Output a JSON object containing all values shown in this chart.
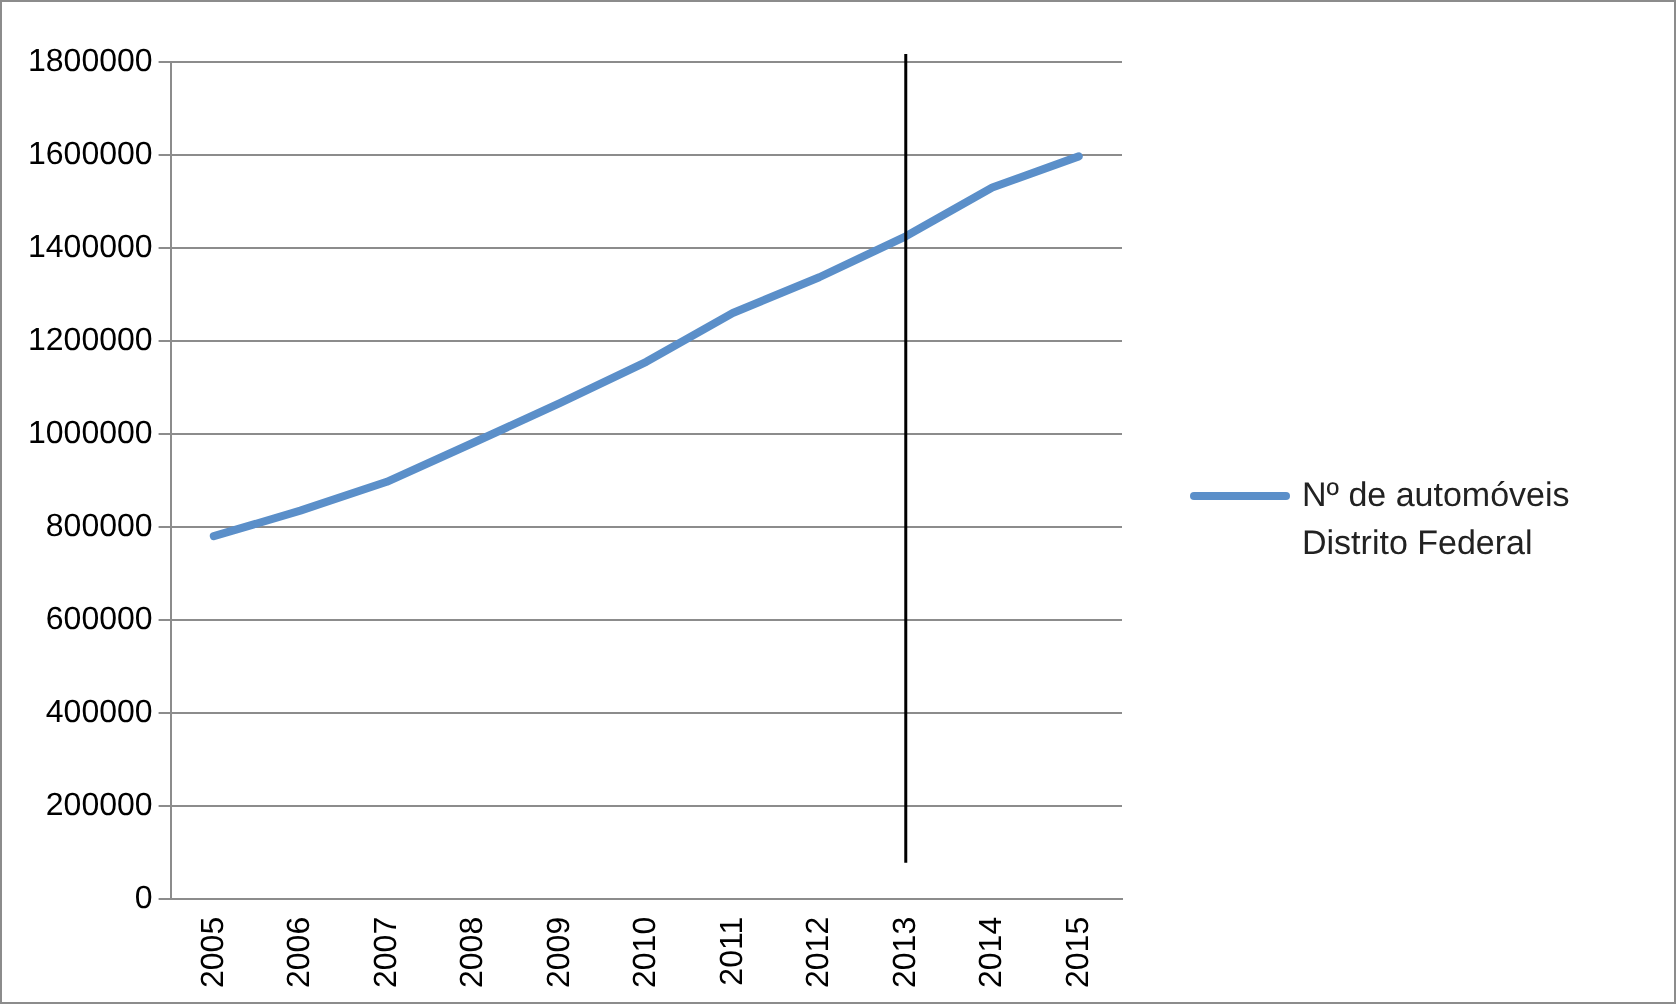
{
  "chart_data": {
    "type": "line",
    "categories": [
      "2005",
      "2006",
      "2007",
      "2008",
      "2009",
      "2010",
      "2011",
      "2012",
      "2013",
      "2014",
      "2015"
    ],
    "series": [
      {
        "name": "Nº de automóveis Distrito Federal",
        "color": "#5b8fc9",
        "values": [
          780000,
          835000,
          897000,
          981000,
          1066000,
          1155000,
          1260000,
          1337000,
          1425000,
          1530000,
          1597000
        ]
      }
    ],
    "ylim": [
      0,
      1800000
    ],
    "yticks": [
      0,
      200000,
      400000,
      600000,
      800000,
      1000000,
      1200000,
      1400000,
      1600000,
      1800000
    ],
    "ref_lines": [
      {
        "axis": "x",
        "value": "2013",
        "color": "#000000"
      }
    ],
    "grid": "y",
    "legend": "right",
    "marker": "none"
  }
}
